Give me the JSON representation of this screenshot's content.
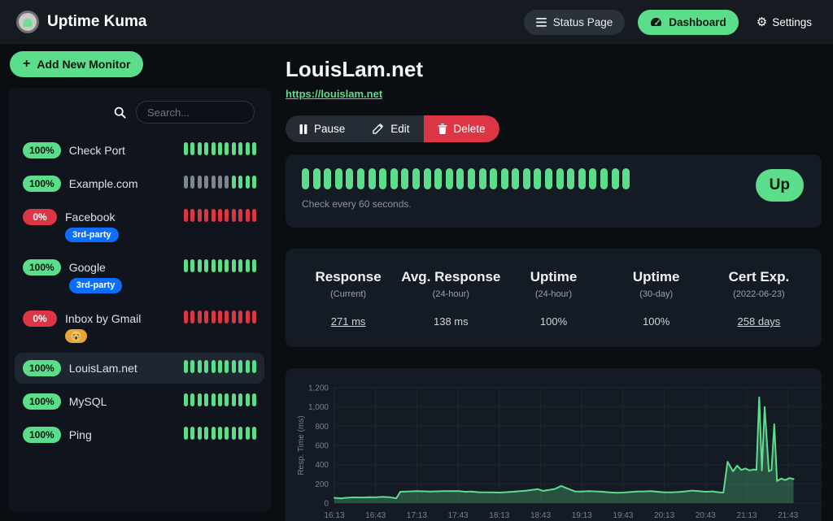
{
  "navbar": {
    "brand": "Uptime Kuma",
    "status_page_label": "Status Page",
    "dashboard_label": "Dashboard",
    "settings_label": "Settings"
  },
  "sidebar": {
    "add_monitor_label": "Add New Monitor",
    "search_placeholder": "Search...",
    "monitors": [
      {
        "uptime": "100%",
        "status": "up",
        "name": "Check Port",
        "tags": [],
        "selected": false,
        "beats": [
          "up",
          "up",
          "up",
          "up",
          "up",
          "up",
          "up",
          "up",
          "up",
          "up",
          "up"
        ]
      },
      {
        "uptime": "100%",
        "status": "up",
        "name": "Example.com",
        "tags": [],
        "selected": false,
        "beats": [
          "none",
          "none",
          "none",
          "none",
          "none",
          "none",
          "none",
          "up",
          "up",
          "up",
          "up"
        ]
      },
      {
        "uptime": "0%",
        "status": "down",
        "name": "Facebook",
        "selected": false,
        "tags": [
          {
            "type": "text",
            "label": "3rd-party",
            "color": "#0d6efd"
          }
        ],
        "beats": [
          "down",
          "down",
          "down",
          "down",
          "down",
          "down",
          "down",
          "down",
          "down",
          "down",
          "down"
        ]
      },
      {
        "uptime": "100%",
        "status": "up",
        "name": "Google",
        "selected": false,
        "tags": [
          {
            "type": "text",
            "label": "3rd-party",
            "color": "#0d6efd"
          }
        ],
        "beats": [
          "up",
          "up",
          "up",
          "up",
          "up",
          "up",
          "up",
          "up",
          "up",
          "up",
          "up"
        ]
      },
      {
        "uptime": "0%",
        "status": "down",
        "name": "Inbox by Gmail",
        "selected": false,
        "tags": [
          {
            "type": "emoji",
            "label": "crying-face",
            "color": "#e8a33d"
          }
        ],
        "beats": [
          "down",
          "down",
          "down",
          "down",
          "down",
          "down",
          "down",
          "down",
          "down",
          "down",
          "down"
        ]
      },
      {
        "uptime": "100%",
        "status": "up",
        "name": "LouisLam.net",
        "tags": [],
        "selected": true,
        "beats": [
          "up",
          "up",
          "up",
          "up",
          "up",
          "up",
          "up",
          "up",
          "up",
          "up",
          "up"
        ]
      },
      {
        "uptime": "100%",
        "status": "up",
        "name": "MySQL",
        "tags": [],
        "selected": false,
        "beats": [
          "up",
          "up",
          "up",
          "up",
          "up",
          "up",
          "up",
          "up",
          "up",
          "up",
          "up"
        ]
      },
      {
        "uptime": "100%",
        "status": "up",
        "name": "Ping",
        "tags": [],
        "selected": false,
        "beats": [
          "up",
          "up",
          "up",
          "up",
          "up",
          "up",
          "up",
          "up",
          "up",
          "up",
          "up"
        ]
      }
    ]
  },
  "monitor": {
    "title": "LouisLam.net",
    "url": "https://louislam.net",
    "pause_label": "Pause",
    "edit_label": "Edit",
    "delete_label": "Delete",
    "status_label": "Up",
    "check_interval_text": "Check every 60 seconds.",
    "beat_count": 30,
    "beat_status": "up"
  },
  "stats": [
    {
      "title": "Response",
      "subtitle": "(Current)",
      "value": "271 ms",
      "underline": true
    },
    {
      "title": "Avg. Response",
      "subtitle": "(24-hour)",
      "value": "138 ms",
      "underline": false
    },
    {
      "title": "Uptime",
      "subtitle": "(24-hour)",
      "value": "100%",
      "underline": false
    },
    {
      "title": "Uptime",
      "subtitle": "(30-day)",
      "value": "100%",
      "underline": false
    },
    {
      "title": "Cert Exp.",
      "subtitle": "(2022-06-23)",
      "value": "258 days",
      "underline": true
    }
  ],
  "chart_data": {
    "type": "area",
    "title": "",
    "xlabel": "",
    "ylabel": "Resp. Time (ms)",
    "ylim": [
      0,
      1200
    ],
    "x_max_minutes": 355,
    "grid": true,
    "y_ticks": [
      {
        "v": 0,
        "label": "0"
      },
      {
        "v": 200,
        "label": "200"
      },
      {
        "v": 400,
        "label": "400"
      },
      {
        "v": 600,
        "label": "600"
      },
      {
        "v": 800,
        "label": "800"
      },
      {
        "v": 1000,
        "label": "1,000"
      },
      {
        "v": 1200,
        "label": "1,200"
      }
    ],
    "x_ticks": [
      {
        "t": 0,
        "label": "16:13"
      },
      {
        "t": 30,
        "label": "16:43"
      },
      {
        "t": 60,
        "label": "17:13"
      },
      {
        "t": 90,
        "label": "17:43"
      },
      {
        "t": 120,
        "label": "18:13"
      },
      {
        "t": 150,
        "label": "18:43"
      },
      {
        "t": 180,
        "label": "19:13"
      },
      {
        "t": 210,
        "label": "19:43"
      },
      {
        "t": 240,
        "label": "20:13"
      },
      {
        "t": 270,
        "label": "20:43"
      },
      {
        "t": 300,
        "label": "21:13"
      },
      {
        "t": 330,
        "label": "21:43"
      }
    ],
    "points": [
      [
        0,
        55
      ],
      [
        5,
        50
      ],
      [
        10,
        57
      ],
      [
        15,
        60
      ],
      [
        20,
        58
      ],
      [
        25,
        62
      ],
      [
        30,
        60
      ],
      [
        35,
        65
      ],
      [
        40,
        62
      ],
      [
        45,
        50
      ],
      [
        48,
        118
      ],
      [
        55,
        122
      ],
      [
        60,
        125
      ],
      [
        70,
        120
      ],
      [
        80,
        124
      ],
      [
        90,
        126
      ],
      [
        95,
        118
      ],
      [
        100,
        120
      ],
      [
        105,
        113
      ],
      [
        115,
        112
      ],
      [
        120,
        110
      ],
      [
        125,
        114
      ],
      [
        130,
        118
      ],
      [
        140,
        130
      ],
      [
        148,
        145
      ],
      [
        152,
        128
      ],
      [
        160,
        145
      ],
      [
        165,
        178
      ],
      [
        170,
        150
      ],
      [
        175,
        122
      ],
      [
        180,
        120
      ],
      [
        185,
        124
      ],
      [
        190,
        122
      ],
      [
        195,
        118
      ],
      [
        200,
        112
      ],
      [
        205,
        108
      ],
      [
        210,
        110
      ],
      [
        215,
        115
      ],
      [
        220,
        120
      ],
      [
        225,
        122
      ],
      [
        230,
        124
      ],
      [
        235,
        118
      ],
      [
        240,
        112
      ],
      [
        245,
        112
      ],
      [
        250,
        115
      ],
      [
        255,
        122
      ],
      [
        260,
        130
      ],
      [
        265,
        125
      ],
      [
        270,
        118
      ],
      [
        275,
        122
      ],
      [
        280,
        112
      ],
      [
        283,
        110
      ],
      [
        286,
        430
      ],
      [
        290,
        330
      ],
      [
        293,
        390
      ],
      [
        296,
        345
      ],
      [
        299,
        360
      ],
      [
        302,
        340
      ],
      [
        305,
        350
      ],
      [
        307,
        345
      ],
      [
        309,
        1100
      ],
      [
        311,
        340
      ],
      [
        313,
        1000
      ],
      [
        316,
        330
      ],
      [
        318,
        345
      ],
      [
        320,
        820
      ],
      [
        322,
        230
      ],
      [
        325,
        255
      ],
      [
        328,
        240
      ],
      [
        331,
        260
      ],
      [
        334,
        250
      ]
    ]
  },
  "colors": {
    "up": "#5cdd8b",
    "down": "#dc3545",
    "none": "#7d858d",
    "accent": "#5cdd8b",
    "danger": "#dc3545",
    "tag_blue": "#0d6efd",
    "tag_orange": "#e8a33d",
    "chart_line": "#5cdd8b",
    "chart_fill": "rgba(92,221,139,0.28)"
  }
}
